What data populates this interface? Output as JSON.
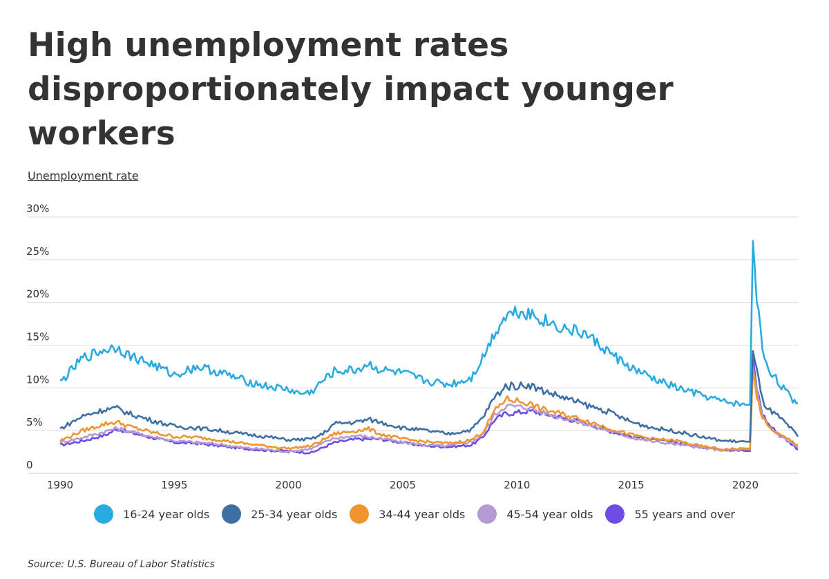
{
  "title": "High unemployment rates disproportionately impact younger workers",
  "source": "Source:  U.S. Bureau of Labor Statistics",
  "chart_data": {
    "type": "line",
    "ylabel": "Unemployment rate",
    "xlabel": "",
    "xlim": [
      1990,
      2022.3
    ],
    "ylim": [
      0,
      30
    ],
    "x_ticks": [
      "1990",
      "1995",
      "2000",
      "2005",
      "2010",
      "2015",
      "2020"
    ],
    "y_ticks": [
      "0",
      "5%",
      "10%",
      "15%",
      "20%",
      "25%",
      "30%"
    ],
    "grid": "horizontal",
    "legend": "bottom",
    "series": [
      {
        "name": "16-24 year olds",
        "color": "#29abe2",
        "x": [
          1990,
          1991,
          1992,
          1992.5,
          1993,
          1994,
          1995,
          1996,
          1997,
          1998,
          1999,
          2000,
          2000.5,
          2001,
          2001.5,
          2002,
          2003,
          2003.5,
          2004,
          2005,
          2006,
          2007,
          2007.5,
          2008,
          2008.5,
          2009,
          2009.5,
          2010,
          2010.5,
          2011,
          2012,
          2013,
          2014,
          2015,
          2016,
          2017,
          2018,
          2019,
          2020,
          2020.2,
          2020.33,
          2020.5,
          2020.75,
          2021,
          2021.5,
          2022,
          2022.3
        ],
        "y": [
          10.6,
          13.5,
          14.5,
          14.8,
          13.8,
          12.8,
          11.5,
          12.5,
          11.8,
          10.9,
          10.2,
          9.8,
          9.3,
          9.5,
          10.8,
          11.9,
          12.1,
          12.8,
          12.1,
          11.7,
          10.8,
          10.4,
          10.7,
          11.2,
          13.5,
          16.3,
          18.5,
          19.0,
          18.8,
          18.1,
          17.0,
          16.3,
          14.2,
          12.3,
          11.0,
          10.0,
          9.2,
          8.4,
          8.0,
          8.0,
          27.2,
          20.5,
          14.5,
          12.3,
          10.5,
          8.8,
          8.2
        ]
      },
      {
        "name": "25-34 year olds",
        "color": "#3d6fa3",
        "x": [
          1990,
          1991,
          1992,
          1992.5,
          1993,
          1994,
          1995,
          1996,
          1997,
          1998,
          1999,
          2000,
          2001,
          2001.5,
          2002,
          2003,
          2003.5,
          2004,
          2005,
          2006,
          2007,
          2008,
          2008.5,
          2009,
          2009.5,
          2010,
          2010.5,
          2011,
          2012,
          2013,
          2014,
          2015,
          2016,
          2017,
          2018,
          2019,
          2020,
          2020.2,
          2020.33,
          2020.5,
          2020.75,
          2021,
          2021.5,
          2022,
          2022.3
        ],
        "y": [
          5.2,
          6.7,
          7.5,
          7.6,
          7.0,
          6.2,
          5.5,
          5.3,
          5.0,
          4.6,
          4.3,
          3.9,
          4.0,
          4.6,
          5.8,
          6.0,
          6.3,
          6.0,
          5.3,
          5.0,
          4.6,
          5.1,
          6.5,
          8.8,
          10.2,
          10.2,
          10.4,
          9.8,
          8.9,
          8.0,
          7.2,
          6.0,
          5.3,
          4.9,
          4.3,
          3.8,
          3.7,
          3.7,
          14.3,
          12.0,
          8.5,
          7.5,
          6.5,
          5.2,
          4.3
        ]
      },
      {
        "name": "34-44 year olds",
        "color": "#f0952e",
        "x": [
          1990,
          1991,
          1992,
          1992.5,
          1993,
          1994,
          1995,
          1996,
          1997,
          1998,
          1999,
          2000,
          2001,
          2002,
          2003,
          2003.5,
          2004,
          2005,
          2006,
          2007,
          2008,
          2008.5,
          2009,
          2009.5,
          2010,
          2010.5,
          2011,
          2012,
          2013,
          2014,
          2015,
          2016,
          2017,
          2018,
          2019,
          2020,
          2020.2,
          2020.33,
          2020.5,
          2020.75,
          2021,
          2021.5,
          2022,
          2022.3
        ],
        "y": [
          3.8,
          5.0,
          5.8,
          6.0,
          5.5,
          4.8,
          4.3,
          4.2,
          3.9,
          3.5,
          3.2,
          2.9,
          3.2,
          4.6,
          5.0,
          5.2,
          4.6,
          4.0,
          3.7,
          3.5,
          3.9,
          4.8,
          7.2,
          8.7,
          8.5,
          8.2,
          7.6,
          6.9,
          6.2,
          5.3,
          4.5,
          4.0,
          3.8,
          3.2,
          2.8,
          2.9,
          2.9,
          12.2,
          9.0,
          6.5,
          5.5,
          4.5,
          3.8,
          3.3
        ]
      },
      {
        "name": "45-54 year olds",
        "color": "#b59bd3",
        "x": [
          1990,
          1991,
          1992,
          1992.5,
          1993,
          1994,
          1995,
          1996,
          1997,
          1998,
          1999,
          2000,
          2001,
          2002,
          2003,
          2004,
          2005,
          2006,
          2007,
          2008,
          2008.5,
          2009,
          2009.5,
          2010,
          2010.5,
          2011,
          2012,
          2013,
          2014,
          2015,
          2016,
          2017,
          2018,
          2019,
          2020,
          2020.2,
          2020.33,
          2020.5,
          2020.75,
          2021,
          2021.5,
          2022,
          2022.3
        ],
        "y": [
          3.6,
          4.2,
          4.9,
          5.3,
          4.9,
          4.3,
          3.8,
          3.6,
          3.4,
          3.0,
          2.8,
          2.5,
          2.9,
          4.1,
          4.4,
          4.1,
          3.6,
          3.3,
          3.2,
          3.7,
          4.5,
          6.8,
          7.9,
          7.8,
          7.7,
          7.2,
          6.5,
          5.8,
          5.0,
          4.2,
          3.7,
          3.4,
          3.0,
          2.7,
          2.8,
          2.8,
          12.5,
          9.5,
          6.5,
          5.5,
          4.4,
          3.6,
          3.0
        ]
      },
      {
        "name": "55 years and over",
        "color": "#6e4be3",
        "x": [
          1990,
          1991,
          1992,
          1992.5,
          1993,
          1994,
          1995,
          1996,
          1997,
          1998,
          1999,
          2000,
          2001,
          2002,
          2003,
          2004,
          2005,
          2006,
          2007,
          2008,
          2008.5,
          2009,
          2009.5,
          2010,
          2010.5,
          2011,
          2012,
          2013,
          2014,
          2015,
          2016,
          2017,
          2018,
          2019,
          2020,
          2020.2,
          2020.33,
          2020.5,
          2020.75,
          2021,
          2021.5,
          2022,
          2022.3
        ],
        "y": [
          3.3,
          3.8,
          4.5,
          5.2,
          4.8,
          4.2,
          3.6,
          3.5,
          3.2,
          2.9,
          2.7,
          2.6,
          2.4,
          3.6,
          4.0,
          4.0,
          3.6,
          3.2,
          3.1,
          3.3,
          4.2,
          6.2,
          7.0,
          7.1,
          7.3,
          7.1,
          6.5,
          5.9,
          5.0,
          4.3,
          3.9,
          3.6,
          3.1,
          2.8,
          2.6,
          2.6,
          13.5,
          10.0,
          7.0,
          5.8,
          4.5,
          3.5,
          2.8
        ]
      }
    ]
  }
}
